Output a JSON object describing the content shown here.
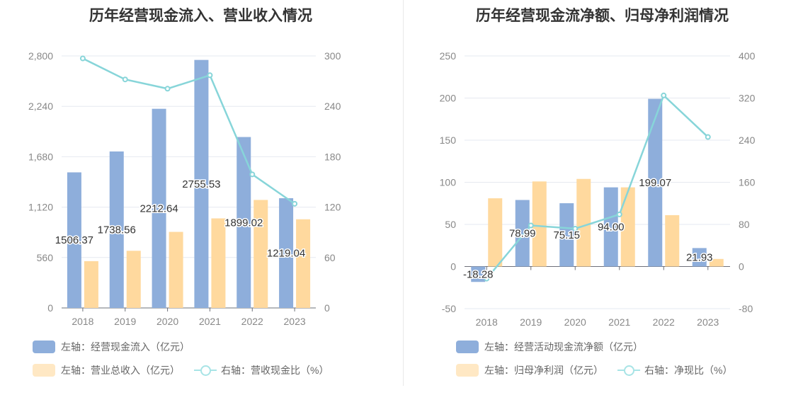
{
  "chart_data": [
    {
      "type": "bar",
      "title": "历年经营现金流入、营业收入情况",
      "categories": [
        "2018",
        "2019",
        "2020",
        "2021",
        "2022",
        "2023"
      ],
      "ylim_left": [
        0,
        2800
      ],
      "yticks_left": [
        "2,800",
        "2,240",
        "1,680",
        "1,120",
        "560",
        "0"
      ],
      "ylim_right": [
        0,
        300
      ],
      "yticks_right": [
        "300",
        "240",
        "180",
        "120",
        "60",
        "0"
      ],
      "series": [
        {
          "name": "左轴：经营现金流入（亿元）",
          "axis": "left",
          "type": "bar",
          "color": "#8eaedb",
          "values": [
            1506.37,
            1738.56,
            2212.64,
            2755.53,
            1899.02,
            1219.04
          ],
          "labels": [
            "1506.37",
            "1738.56",
            "2212.64",
            "2755.53",
            "1899.02",
            "1219.04"
          ]
        },
        {
          "name": "左轴：营业总收入（亿元）",
          "axis": "left",
          "type": "bar",
          "color": "#ffd99e",
          "values": [
            520,
            635,
            845,
            995,
            1200,
            985
          ]
        },
        {
          "name": "右轴：营收现金比（%）",
          "axis": "right",
          "type": "line",
          "color": "#87d5d9",
          "values": [
            297,
            272,
            261,
            277,
            159,
            124
          ]
        }
      ]
    },
    {
      "type": "bar",
      "title": "历年经营现金流净额、归母净利润情况",
      "categories": [
        "2018",
        "2019",
        "2020",
        "2021",
        "2022",
        "2023"
      ],
      "ylim_left": [
        -50,
        250
      ],
      "yticks_left": [
        "250",
        "200",
        "150",
        "100",
        "50",
        "0",
        "-50"
      ],
      "ylim_right": [
        -80,
        400
      ],
      "yticks_right": [
        "400",
        "320",
        "240",
        "160",
        "80",
        "0",
        "-80"
      ],
      "series": [
        {
          "name": "左轴：经营活动现金流净额（亿元）",
          "axis": "left",
          "type": "bar",
          "color": "#8eaedb",
          "values": [
            -18.28,
            78.99,
            75.15,
            94.0,
            199.07,
            21.93
          ],
          "labels": [
            "-18.28",
            "78.99",
            "75.15",
            "94.00",
            "199.07",
            "21.93"
          ]
        },
        {
          "name": "左轴：归母净利润（亿元）",
          "axis": "left",
          "type": "bar",
          "color": "#ffd99e",
          "values": [
            81,
            101,
            104,
            94,
            61,
            9
          ]
        },
        {
          "name": "右轴：净现比（%）",
          "axis": "right",
          "type": "line",
          "color": "#87d5d9",
          "values": [
            -23,
            78,
            72,
            99,
            325,
            246
          ]
        }
      ]
    }
  ]
}
